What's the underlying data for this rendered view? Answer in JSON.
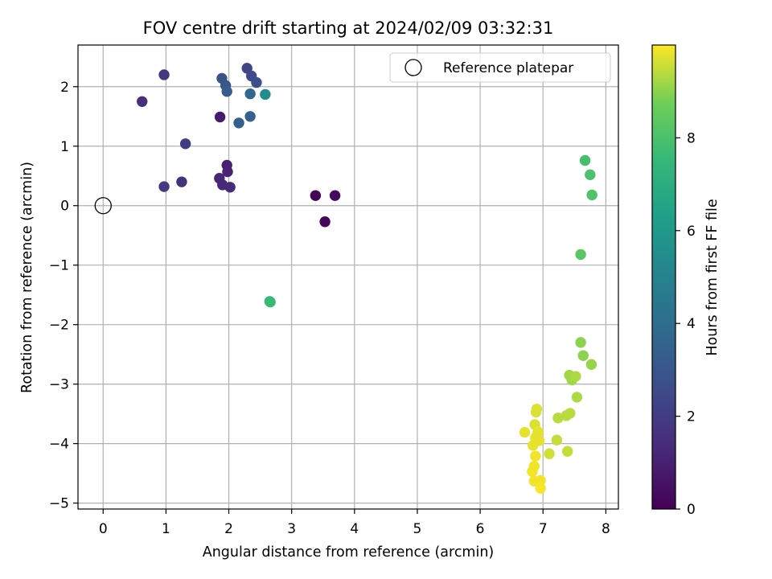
{
  "chart_data": {
    "type": "scatter",
    "title": "FOV centre drift starting at 2024/02/09 03:32:31",
    "xlabel": "Angular distance from reference (arcmin)",
    "ylabel": "Rotation from reference (arcmin)",
    "xlim": [
      -0.4,
      8.2
    ],
    "ylim": [
      -5.1,
      2.7
    ],
    "xticks": [
      0,
      1,
      2,
      3,
      4,
      5,
      6,
      7,
      8
    ],
    "yticks": [
      -5,
      -4,
      -3,
      -2,
      -1,
      0,
      1,
      2
    ],
    "grid": true,
    "colormap": "viridis",
    "colorbar": {
      "label": "Hours from first FF file",
      "range": [
        0,
        10
      ],
      "ticks": [
        0,
        2,
        4,
        6,
        8
      ]
    },
    "legend": {
      "position": "top-right",
      "entries": [
        {
          "label": "Reference platepar",
          "marker": "open-circle",
          "x": 0,
          "y": 0
        }
      ]
    },
    "points": [
      {
        "x": 3.38,
        "y": 0.17,
        "hours": 0.1
      },
      {
        "x": 3.53,
        "y": -0.27,
        "hours": 0.2
      },
      {
        "x": 3.69,
        "y": 0.17,
        "hours": 0.3
      },
      {
        "x": 1.86,
        "y": 1.49,
        "hours": 0.8
      },
      {
        "x": 1.97,
        "y": 0.68,
        "hours": 1.0
      },
      {
        "x": 1.98,
        "y": 0.57,
        "hours": 1.1
      },
      {
        "x": 1.85,
        "y": 0.46,
        "hours": 1.2
      },
      {
        "x": 1.9,
        "y": 0.35,
        "hours": 1.3
      },
      {
        "x": 2.02,
        "y": 0.31,
        "hours": 1.4
      },
      {
        "x": 0.62,
        "y": 1.75,
        "hours": 1.5
      },
      {
        "x": 1.25,
        "y": 0.4,
        "hours": 1.6
      },
      {
        "x": 0.97,
        "y": 0.32,
        "hours": 1.9
      },
      {
        "x": 0.97,
        "y": 2.2,
        "hours": 1.8
      },
      {
        "x": 1.31,
        "y": 1.04,
        "hours": 2.0
      },
      {
        "x": 2.29,
        "y": 2.31,
        "hours": 2.3
      },
      {
        "x": 2.36,
        "y": 2.18,
        "hours": 2.5
      },
      {
        "x": 2.44,
        "y": 2.07,
        "hours": 2.7
      },
      {
        "x": 1.89,
        "y": 2.14,
        "hours": 2.9
      },
      {
        "x": 1.95,
        "y": 2.02,
        "hours": 3.0
      },
      {
        "x": 1.97,
        "y": 1.92,
        "hours": 3.3
      },
      {
        "x": 2.16,
        "y": 1.39,
        "hours": 3.4
      },
      {
        "x": 2.34,
        "y": 1.5,
        "hours": 3.5
      },
      {
        "x": 2.34,
        "y": 1.88,
        "hours": 3.7
      },
      {
        "x": 2.58,
        "y": 1.87,
        "hours": 5.5
      },
      {
        "x": 2.66,
        "y": -1.62,
        "hours": 7.5
      },
      {
        "x": 2.65,
        "y": -1.61,
        "hours": 7.6
      },
      {
        "x": 7.67,
        "y": 0.76,
        "hours": 7.9
      },
      {
        "x": 7.75,
        "y": 0.52,
        "hours": 8.0
      },
      {
        "x": 7.78,
        "y": 0.18,
        "hours": 8.1
      },
      {
        "x": 7.6,
        "y": -0.82,
        "hours": 8.3
      },
      {
        "x": 7.6,
        "y": -2.3,
        "hours": 9.0
      },
      {
        "x": 7.64,
        "y": -2.52,
        "hours": 9.0
      },
      {
        "x": 7.77,
        "y": -2.67,
        "hours": 9.1
      },
      {
        "x": 7.42,
        "y": -2.85,
        "hours": 9.2
      },
      {
        "x": 7.46,
        "y": -2.93,
        "hours": 9.2
      },
      {
        "x": 7.52,
        "y": -2.87,
        "hours": 9.3
      },
      {
        "x": 7.54,
        "y": -3.22,
        "hours": 9.3
      },
      {
        "x": 7.24,
        "y": -3.57,
        "hours": 9.4
      },
      {
        "x": 7.37,
        "y": -3.53,
        "hours": 9.4
      },
      {
        "x": 7.43,
        "y": -3.49,
        "hours": 9.4
      },
      {
        "x": 7.22,
        "y": -3.94,
        "hours": 9.5
      },
      {
        "x": 7.39,
        "y": -4.13,
        "hours": 9.5
      },
      {
        "x": 7.1,
        "y": -4.17,
        "hours": 9.6
      },
      {
        "x": 6.9,
        "y": -3.42,
        "hours": 9.7
      },
      {
        "x": 6.89,
        "y": -3.47,
        "hours": 9.7
      },
      {
        "x": 6.87,
        "y": -3.68,
        "hours": 9.7
      },
      {
        "x": 6.92,
        "y": -3.8,
        "hours": 9.8
      },
      {
        "x": 6.71,
        "y": -3.81,
        "hours": 9.8
      },
      {
        "x": 6.88,
        "y": -3.9,
        "hours": 9.8
      },
      {
        "x": 6.94,
        "y": -3.95,
        "hours": 9.8
      },
      {
        "x": 6.84,
        "y": -4.03,
        "hours": 9.8
      },
      {
        "x": 6.88,
        "y": -4.21,
        "hours": 9.9
      },
      {
        "x": 6.86,
        "y": -4.38,
        "hours": 9.9
      },
      {
        "x": 6.83,
        "y": -4.47,
        "hours": 9.9
      },
      {
        "x": 6.86,
        "y": -4.63,
        "hours": 9.9
      },
      {
        "x": 6.96,
        "y": -4.62,
        "hours": 9.9
      },
      {
        "x": 6.96,
        "y": -4.75,
        "hours": 9.95
      }
    ]
  }
}
